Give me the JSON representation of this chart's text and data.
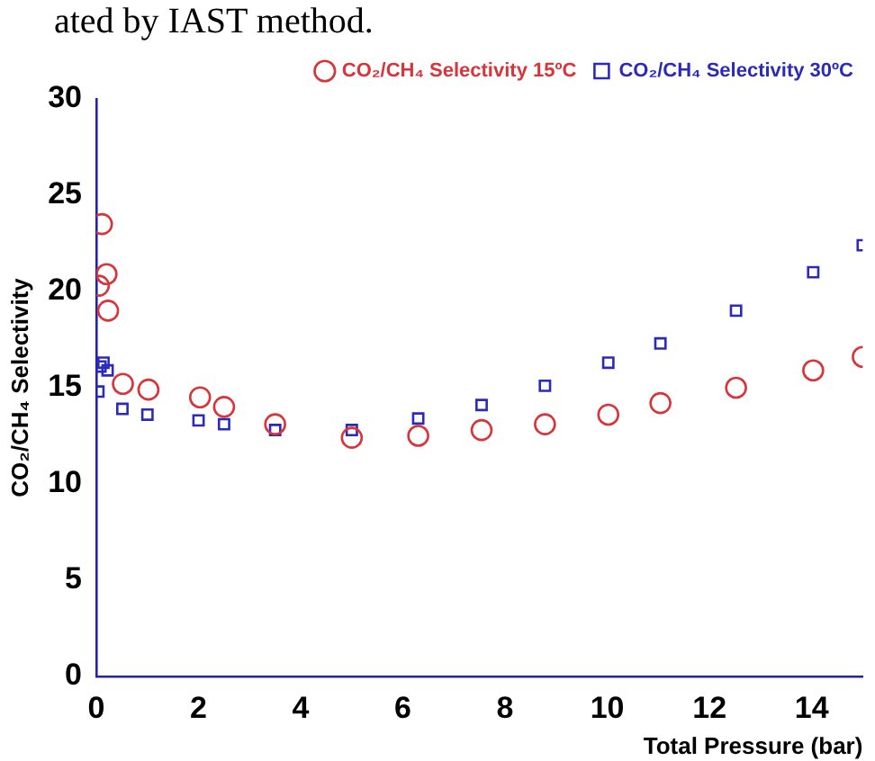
{
  "chart_data": {
    "type": "scatter",
    "xlabel": "Total Pressure (bar)",
    "ylabel": "CO₂/CH₄ Selectivity",
    "annotations": [
      "ated by IAST method."
    ],
    "xlim": [
      0,
      15
    ],
    "xticks": [
      0,
      2,
      4,
      6,
      8,
      10,
      12,
      14
    ],
    "ylim": [
      0,
      30
    ],
    "yticks": [
      0,
      5,
      10,
      15,
      20,
      25,
      30
    ],
    "grid": false,
    "legend": "top right",
    "series": [
      {
        "name": "CO₂/CH₄ Selectivity 15ºC",
        "color": "#d9343a",
        "marker": "circle",
        "x": [
          0.05,
          0.11,
          0.2,
          0.23,
          0.52,
          1.02,
          2.03,
          2.5,
          3.5,
          5.0,
          6.3,
          7.54,
          8.78,
          10.02,
          11.04,
          12.52,
          14.03,
          15.0
        ],
        "values": [
          20.3,
          23.5,
          20.9,
          19.0,
          15.2,
          14.9,
          14.5,
          14.0,
          13.1,
          12.4,
          12.5,
          12.8,
          13.1,
          13.6,
          14.2,
          15.0,
          15.9,
          16.6
        ]
      },
      {
        "name": "CO₂/CH₄ Selectivity 30ºC",
        "color": "#2b2bb8",
        "marker": "square",
        "x": [
          0.04,
          0.08,
          0.14,
          0.22,
          0.51,
          1.0,
          2.0,
          2.5,
          3.5,
          5.0,
          6.3,
          7.54,
          8.78,
          10.02,
          11.04,
          12.52,
          14.03,
          15.0
        ],
        "values": [
          14.8,
          16.1,
          16.3,
          15.9,
          13.9,
          13.6,
          13.3,
          13.1,
          12.8,
          12.8,
          13.4,
          14.1,
          15.1,
          16.3,
          17.3,
          19.0,
          21.0,
          22.4
        ]
      }
    ]
  }
}
